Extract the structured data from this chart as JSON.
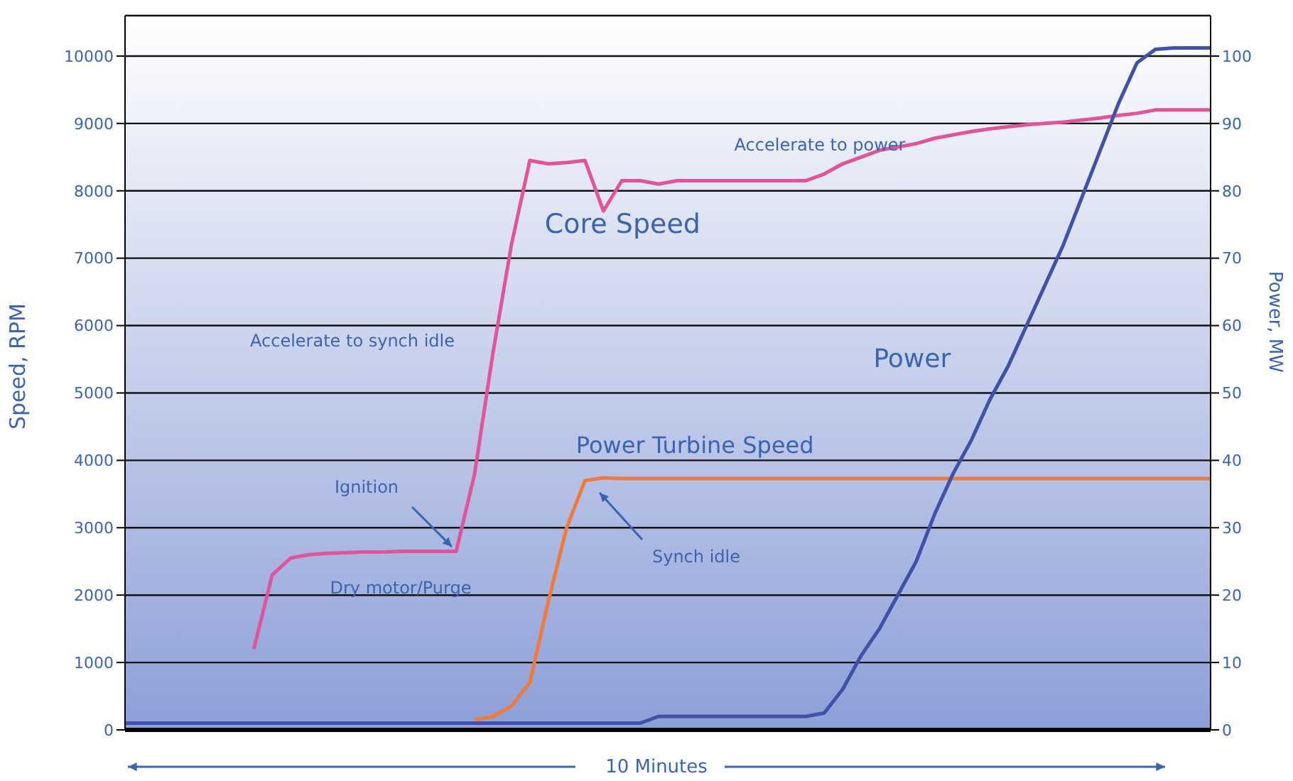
{
  "chart_data": {
    "type": "line",
    "xlabel": "10 Minutes",
    "ylabel": "Speed, RPM",
    "y2label": "Power, MW",
    "categories": [
      null,
      null,
      null,
      null,
      null,
      null,
      null,
      null,
      null,
      null,
      null,
      null,
      null,
      null,
      null,
      null,
      null,
      null,
      null,
      null,
      null,
      null,
      null,
      null,
      null,
      null,
      null,
      null,
      null,
      null,
      null,
      null,
      null,
      null,
      null,
      null,
      null,
      null,
      null,
      null,
      null,
      null,
      null,
      null,
      null,
      null,
      null,
      null,
      null,
      null,
      null,
      null,
      null,
      null,
      null,
      null,
      null,
      null,
      null,
      null
    ],
    "series": [
      {
        "name": "Core Speed",
        "color": "#e0559a",
        "values": [
          null,
          null,
          null,
          null,
          null,
          null,
          null,
          1200,
          2300,
          2550,
          2600,
          2620,
          2630,
          2640,
          2640,
          2650,
          2650,
          2650,
          2650,
          3800,
          5600,
          7200,
          8450,
          8400,
          8420,
          8450,
          7700,
          8150,
          8150,
          8100,
          8150,
          8150,
          8150,
          8150,
          8150,
          8150,
          8150,
          8150,
          8250,
          8400,
          8500,
          8600,
          8650,
          8700,
          8780,
          8830,
          8880,
          8920,
          8950,
          8980,
          9000,
          9020,
          9050,
          9080,
          9120,
          9150,
          9200,
          9200,
          9200,
          9200
        ]
      },
      {
        "name": "Power Turbine Speed",
        "color": "#f07a3a",
        "values": [
          null,
          null,
          null,
          null,
          null,
          null,
          null,
          null,
          null,
          null,
          null,
          null,
          null,
          null,
          null,
          null,
          null,
          null,
          null,
          150,
          200,
          350,
          700,
          1900,
          3000,
          3700,
          3740,
          3730,
          3730,
          3730,
          3730,
          3730,
          3730,
          3730,
          3730,
          3730,
          3730,
          3730,
          3730,
          3730,
          3730,
          3730,
          3730,
          3730,
          3730,
          3730,
          3730,
          3730,
          3730,
          3730,
          3730,
          3730,
          3730,
          3730,
          3730,
          3730,
          3730,
          3730,
          3730,
          3730
        ]
      },
      {
        "name": "Power",
        "color": "#3f51a8",
        "axis": "y2",
        "values": [
          1,
          1,
          1,
          1,
          1,
          1,
          1,
          1,
          1,
          1,
          1,
          1,
          1,
          1,
          1,
          1,
          1,
          1,
          1,
          1,
          1,
          1,
          1,
          1,
          1,
          1,
          1,
          1,
          1,
          2,
          2,
          2,
          2,
          2,
          2,
          2,
          2,
          2,
          2.5,
          6,
          11,
          15,
          20,
          25,
          32,
          38,
          43,
          49,
          54,
          60,
          66,
          72,
          79,
          86,
          93,
          99,
          101,
          101.2,
          101.2,
          101.2
        ]
      }
    ],
    "ylim": [
      0,
      10600
    ],
    "yticks": [
      0,
      1000,
      2000,
      3000,
      4000,
      5000,
      6000,
      7000,
      8000,
      9000,
      10000
    ],
    "y2lim": [
      0,
      106
    ],
    "y2ticks": [
      0,
      10,
      20,
      30,
      40,
      50,
      60,
      70,
      80,
      90,
      100
    ],
    "grid": "y",
    "annotations": [
      "Accelerate to synch idle",
      "Ignition",
      "Dry motor/Purge",
      "Synch idle",
      "Accelerate to power"
    ]
  }
}
